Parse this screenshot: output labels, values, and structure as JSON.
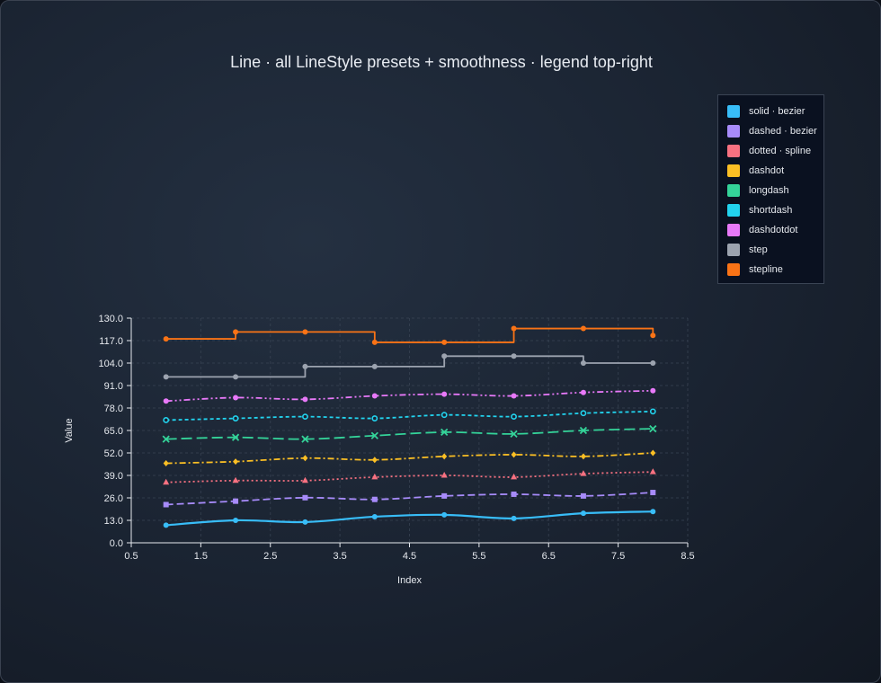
{
  "chart_data": {
    "type": "line",
    "title": "Line · all LineStyle presets + smoothness · legend top-right",
    "xlabel": "Index",
    "ylabel": "Value",
    "xlim": [
      0.5,
      8.5
    ],
    "ylim": [
      0,
      130
    ],
    "x_ticks": [
      "0.5",
      "1.5",
      "2.5",
      "3.5",
      "4.5",
      "5.5",
      "6.5",
      "7.5",
      "8.5"
    ],
    "y_ticks": [
      "0.0",
      "13.0",
      "26.0",
      "39.0",
      "52.0",
      "65.0",
      "78.0",
      "91.0",
      "104.0",
      "117.0",
      "130.0"
    ],
    "grid": true,
    "legend_position": "top-right",
    "x": [
      1,
      2,
      3,
      4,
      5,
      6,
      7,
      8
    ],
    "series": [
      {
        "name": "solid · bezier",
        "color": "#38bdf8",
        "style": "solid",
        "marker": "circle",
        "values": [
          10.2,
          13.0,
          12.0,
          15.1,
          16.2,
          14.1,
          17.1,
          18.1
        ]
      },
      {
        "name": "dashed · bezier",
        "color": "#a78bfa",
        "style": "dashed",
        "marker": "square",
        "values": [
          22.1,
          24.1,
          26.1,
          25.1,
          27.1,
          28.1,
          27.1,
          29.1
        ]
      },
      {
        "name": "dotted · spline",
        "color": "#f87181",
        "style": "dotted",
        "marker": "triangle",
        "values": [
          35.0,
          36.0,
          36.0,
          38.0,
          39.0,
          38.0,
          40.0,
          41.0
        ]
      },
      {
        "name": "dashdot",
        "color": "#fbbf24",
        "style": "dashdot",
        "marker": "diamond",
        "values": [
          46.0,
          47.0,
          49.0,
          48.0,
          50.0,
          51.0,
          50.0,
          52.0
        ]
      },
      {
        "name": "longdash",
        "color": "#34d399",
        "style": "longdash",
        "marker": "cross",
        "values": [
          60.0,
          61.0,
          60.0,
          62.0,
          64.0,
          63.0,
          65.0,
          66.0
        ]
      },
      {
        "name": "shortdash",
        "color": "#22d3ee",
        "style": "shortdash",
        "marker": "ring",
        "values": [
          71.0,
          72.0,
          73.0,
          72.0,
          74.0,
          73.0,
          75.0,
          76.0
        ]
      },
      {
        "name": "dashdotdot",
        "color": "#e879f9",
        "style": "dashdotdot",
        "marker": "circle",
        "values": [
          82.0,
          84.0,
          83.0,
          85.0,
          86.0,
          85.0,
          87.0,
          88.0
        ]
      },
      {
        "name": "step",
        "color": "#9ca3af",
        "style": "step",
        "marker": "circle",
        "values": [
          96.0,
          96.0,
          102.0,
          102.0,
          108.0,
          108.0,
          104.0,
          104.0
        ]
      },
      {
        "name": "stepline",
        "color": "#f97316",
        "style": "stepline",
        "marker": "circle",
        "values": [
          118.0,
          122.0,
          122.0,
          116.0,
          116.0,
          124.0,
          124.0,
          120.0
        ]
      }
    ]
  }
}
